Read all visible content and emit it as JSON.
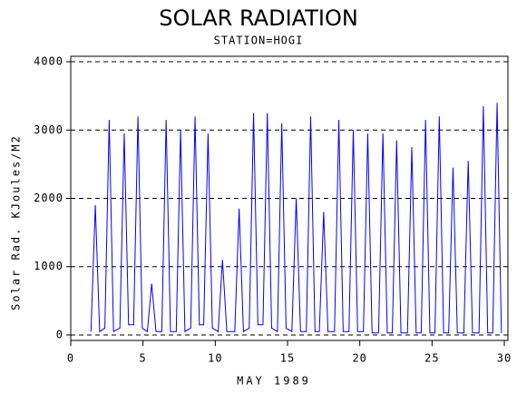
{
  "chart_data": {
    "type": "line",
    "title": "SOLAR RADIATION",
    "subtitle": "STATION=HOGI",
    "x_label": "MAY 1989",
    "y_label": "Solar Rad. KJoules/M2",
    "x": [
      1.4,
      1.7,
      2.0,
      2.36,
      2.66,
      2.96,
      3.4,
      3.7,
      4.0,
      4.35,
      4.65,
      4.95,
      5.3,
      5.6,
      5.9,
      6.3,
      6.6,
      6.9,
      7.3,
      7.6,
      7.9,
      8.3,
      8.6,
      8.9,
      9.2,
      9.5,
      9.8,
      10.2,
      10.5,
      10.8,
      11.35,
      11.65,
      11.95,
      12.35,
      12.65,
      12.95,
      13.3,
      13.6,
      13.9,
      14.3,
      14.6,
      14.9,
      15.3,
      15.6,
      15.9,
      16.3,
      16.6,
      16.9,
      17.2,
      17.5,
      17.8,
      18.25,
      18.55,
      18.85,
      19.25,
      19.55,
      19.85,
      20.25,
      20.55,
      20.85,
      21.3,
      21.6,
      21.9,
      22.25,
      22.55,
      22.85,
      23.3,
      23.6,
      23.9,
      24.25,
      24.55,
      24.85,
      25.2,
      25.5,
      25.8,
      26.15,
      26.45,
      26.75,
      27.2,
      27.5,
      27.8,
      28.25,
      28.55,
      28.85,
      29.2,
      29.5,
      29.8
    ],
    "series": [
      {
        "name": "Solar Rad.",
        "color": "#0000ff",
        "values": [
          50,
          1900,
          50,
          100,
          3150,
          50,
          100,
          2950,
          150,
          150,
          3200,
          100,
          50,
          750,
          50,
          50,
          3150,
          50,
          50,
          3000,
          50,
          100,
          3200,
          150,
          150,
          2950,
          100,
          50,
          1100,
          50,
          50,
          1850,
          50,
          100,
          3250,
          150,
          150,
          3250,
          100,
          50,
          3100,
          100,
          50,
          2000,
          50,
          50,
          3200,
          50,
          50,
          1800,
          50,
          50,
          3150,
          50,
          50,
          3000,
          50,
          50,
          2950,
          30,
          30,
          2950,
          30,
          30,
          2850,
          30,
          30,
          2750,
          30,
          30,
          3150,
          30,
          30,
          3200,
          30,
          30,
          2450,
          30,
          30,
          2550,
          30,
          30,
          3350,
          30,
          30,
          3400,
          30
        ]
      }
    ],
    "xlim": [
      0,
      30.25
    ],
    "xticks": [
      0,
      5,
      10,
      15,
      20,
      25,
      30
    ],
    "ylim": [
      -80,
      4080
    ],
    "yticks": [
      0,
      1000,
      2000,
      3000,
      4000
    ],
    "grid": true
  }
}
